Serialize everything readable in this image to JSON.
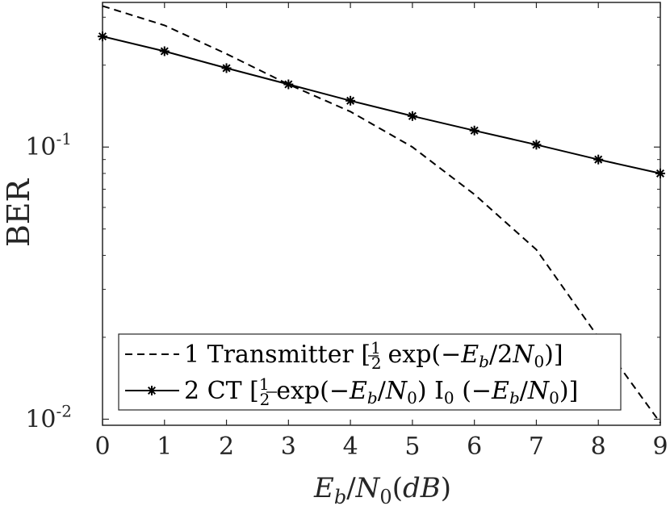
{
  "chart_data": {
    "type": "line",
    "xlabel": "E_b/N_0(dB)",
    "ylabel": "BER",
    "xlim": [
      0,
      9
    ],
    "ylim": [
      0.0095,
      0.34
    ],
    "yscale": "log",
    "grid": false,
    "legend_position": "bottom-left",
    "x_ticks": [
      "0",
      "1",
      "2",
      "3",
      "4",
      "5",
      "6",
      "7",
      "8",
      "9"
    ],
    "y_ticks": [
      {
        "value": 0.1,
        "base": "10",
        "exp": "-1"
      },
      {
        "value": 0.01,
        "base": "10",
        "exp": "-2"
      }
    ],
    "x": [
      0,
      1,
      2,
      3,
      4,
      5,
      6,
      7,
      8,
      9
    ],
    "series": [
      {
        "name": "1 Transmitter [½ exp(−E_b/2N_0)]",
        "legend_parts": [
          "1 Transmitter [",
          "exp(−",
          "/2",
          ")]"
        ],
        "style": "dashed",
        "marker": "none",
        "values": [
          0.33,
          0.28,
          0.22,
          0.17,
          0.135,
          0.1,
          0.067,
          0.042,
          0.02,
          0.0097
        ]
      },
      {
        "name": "2 CT [½ exp(−E_b/N_0) I_0 (−E_b/N_0)]",
        "legend_parts": [
          "2 CT [",
          "exp(−",
          "/",
          ")  I",
          " (−",
          "/",
          ")]"
        ],
        "style": "solid",
        "marker": "asterisk",
        "values": [
          0.255,
          0.225,
          0.195,
          0.17,
          0.148,
          0.13,
          0.115,
          0.102,
          0.09,
          0.08
        ]
      }
    ],
    "colors": {
      "line": "#000000",
      "axis": "#262626",
      "background": "#ffffff"
    }
  }
}
